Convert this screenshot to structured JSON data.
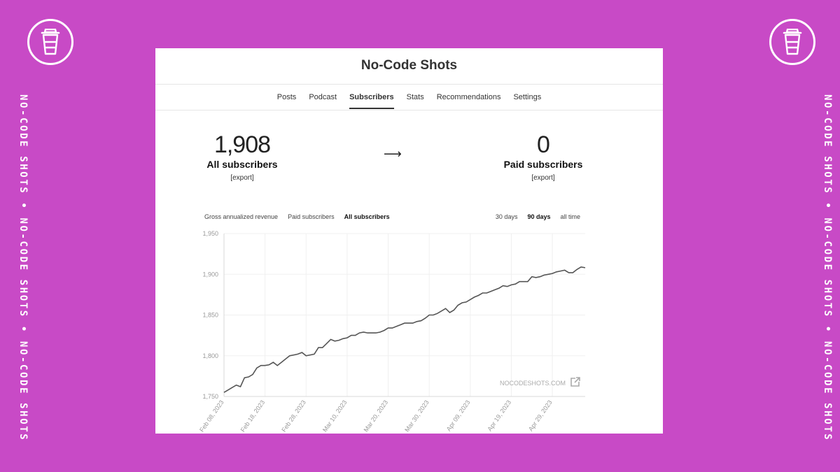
{
  "brand": {
    "side_text": "NO-CODE SHOTS • NO-CODE SHOTS • NO-CODE SHOTS •",
    "background_color": "#c84ac6",
    "logo_icon": "coffee-cup-icon"
  },
  "publication": {
    "title": "No-Code Shots"
  },
  "nav": {
    "items": [
      {
        "label": "Posts",
        "active": false
      },
      {
        "label": "Podcast",
        "active": false
      },
      {
        "label": "Subscribers",
        "active": true
      },
      {
        "label": "Stats",
        "active": false
      },
      {
        "label": "Recommendations",
        "active": false
      },
      {
        "label": "Settings",
        "active": false
      }
    ]
  },
  "stats": {
    "all": {
      "value": "1,908",
      "label": "All subscribers",
      "export": "[export]"
    },
    "arrow": "⟶",
    "paid": {
      "value": "0",
      "label": "Paid subscribers",
      "export": "[export]"
    }
  },
  "chart_filters": {
    "metrics": [
      {
        "label": "Gross annualized revenue",
        "active": false
      },
      {
        "label": "Paid subscribers",
        "active": false
      },
      {
        "label": "All subscribers",
        "active": true
      }
    ],
    "ranges": [
      {
        "label": "30 days",
        "active": false
      },
      {
        "label": "90 days",
        "active": true
      },
      {
        "label": "all time",
        "active": false
      }
    ]
  },
  "chart_data": {
    "type": "line",
    "title": "",
    "xlabel": "",
    "ylabel": "",
    "ylim": [
      1750,
      1950
    ],
    "yticks": [
      "1,950",
      "1,900",
      "1,850",
      "1,800",
      "1,750"
    ],
    "xtick_labels": [
      "Feb 08, 2023",
      "Feb 18, 2023",
      "Feb 28, 2023",
      "Mar 10, 2023",
      "Mar 20, 2023",
      "Mar 30, 2023",
      "Apr 09, 2023",
      "Apr 19, 2023",
      "Apr 29, 2023"
    ],
    "grid": true,
    "watermark": "NOCODESHOTS.COM",
    "series": [
      {
        "color": "#555555",
        "x": [
          "2023-02-08",
          "2023-02-09",
          "2023-02-10",
          "2023-02-11",
          "2023-02-12",
          "2023-02-13",
          "2023-02-14",
          "2023-02-15",
          "2023-02-16",
          "2023-02-17",
          "2023-02-18",
          "2023-02-19",
          "2023-02-20",
          "2023-02-21",
          "2023-02-22",
          "2023-02-23",
          "2023-02-24",
          "2023-02-25",
          "2023-02-26",
          "2023-02-27",
          "2023-02-28",
          "2023-03-01",
          "2023-03-02",
          "2023-03-03",
          "2023-03-04",
          "2023-03-05",
          "2023-03-06",
          "2023-03-07",
          "2023-03-08",
          "2023-03-09",
          "2023-03-10",
          "2023-03-11",
          "2023-03-12",
          "2023-03-13",
          "2023-03-14",
          "2023-03-15",
          "2023-03-16",
          "2023-03-17",
          "2023-03-18",
          "2023-03-19",
          "2023-03-20",
          "2023-03-21",
          "2023-03-22",
          "2023-03-23",
          "2023-03-24",
          "2023-03-25",
          "2023-03-26",
          "2023-03-27",
          "2023-03-28",
          "2023-03-29",
          "2023-03-30",
          "2023-03-31",
          "2023-04-01",
          "2023-04-02",
          "2023-04-03",
          "2023-04-04",
          "2023-04-05",
          "2023-04-06",
          "2023-04-07",
          "2023-04-08",
          "2023-04-09",
          "2023-04-10",
          "2023-04-11",
          "2023-04-12",
          "2023-04-13",
          "2023-04-14",
          "2023-04-15",
          "2023-04-16",
          "2023-04-17",
          "2023-04-18",
          "2023-04-19",
          "2023-04-20",
          "2023-04-21",
          "2023-04-22",
          "2023-04-23",
          "2023-04-24",
          "2023-04-25",
          "2023-04-26",
          "2023-04-27",
          "2023-04-28",
          "2023-04-29",
          "2023-04-30",
          "2023-05-01",
          "2023-05-02",
          "2023-05-03",
          "2023-05-04",
          "2023-05-05",
          "2023-05-06",
          "2023-05-07"
        ],
        "values": [
          1755,
          1758,
          1761,
          1764,
          1762,
          1773,
          1774,
          1777,
          1785,
          1788,
          1788,
          1789,
          1792,
          1788,
          1792,
          1796,
          1800,
          1801,
          1802,
          1804,
          1800,
          1801,
          1802,
          1810,
          1810,
          1815,
          1820,
          1818,
          1819,
          1821,
          1822,
          1825,
          1825,
          1828,
          1829,
          1828,
          1828,
          1828,
          1829,
          1831,
          1834,
          1834,
          1836,
          1838,
          1840,
          1840,
          1840,
          1842,
          1843,
          1846,
          1850,
          1850,
          1852,
          1855,
          1858,
          1853,
          1856,
          1862,
          1865,
          1866,
          1869,
          1872,
          1874,
          1877,
          1877,
          1879,
          1881,
          1883,
          1886,
          1885,
          1887,
          1888,
          1891,
          1891,
          1891,
          1897,
          1896,
          1897,
          1899,
          1900,
          1901,
          1903,
          1904,
          1905,
          1902,
          1902,
          1906,
          1909,
          1908
        ]
      }
    ]
  }
}
